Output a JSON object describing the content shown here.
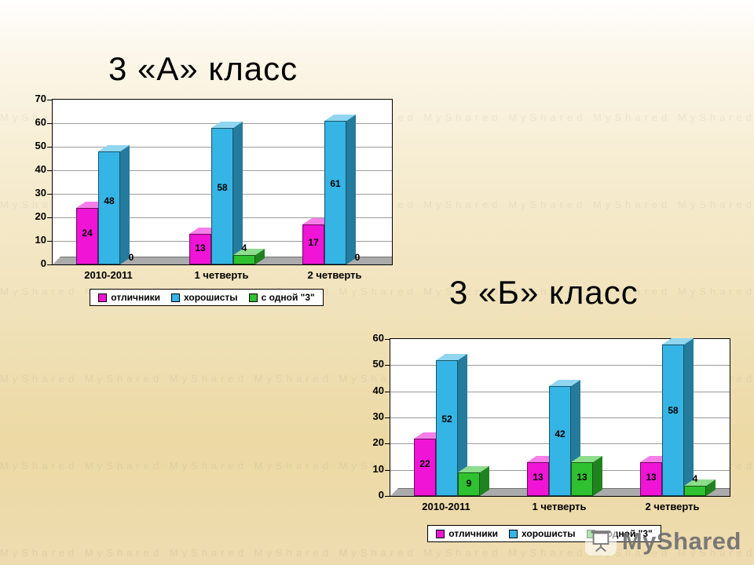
{
  "slide": {
    "watermark_text": "MyShared"
  },
  "chart_data": [
    {
      "id": "chart-a",
      "type": "bar",
      "title": "3 «А» класс",
      "categories": [
        "2010-2011",
        "1 четверть",
        "2 четверть"
      ],
      "series": [
        {
          "name": "отличники",
          "color": "#f014d6",
          "values": [
            24,
            13,
            17
          ]
        },
        {
          "name": "хорошисты",
          "color": "#35b5e5",
          "values": [
            48,
            58,
            61
          ]
        },
        {
          "name": "с одной \"3\"",
          "color": "#2fc12f",
          "values": [
            0,
            4,
            0
          ]
        }
      ],
      "ylim": [
        0,
        70
      ],
      "ytick_step": 10,
      "grid": true,
      "legend_position": "bottom"
    },
    {
      "id": "chart-b",
      "type": "bar",
      "title": "3 «Б» класс",
      "categories": [
        "2010-2011",
        "1 четверть",
        "2 четверть"
      ],
      "series": [
        {
          "name": "отличники",
          "color": "#f014d6",
          "values": [
            22,
            13,
            13
          ]
        },
        {
          "name": "хорошисты",
          "color": "#35b5e5",
          "values": [
            52,
            42,
            58
          ]
        },
        {
          "name": "с одной \"3\"",
          "color": "#2fc12f",
          "values": [
            9,
            13,
            4
          ]
        }
      ],
      "ylim": [
        0,
        60
      ],
      "ytick_step": 10,
      "grid": true,
      "legend_position": "bottom"
    }
  ]
}
